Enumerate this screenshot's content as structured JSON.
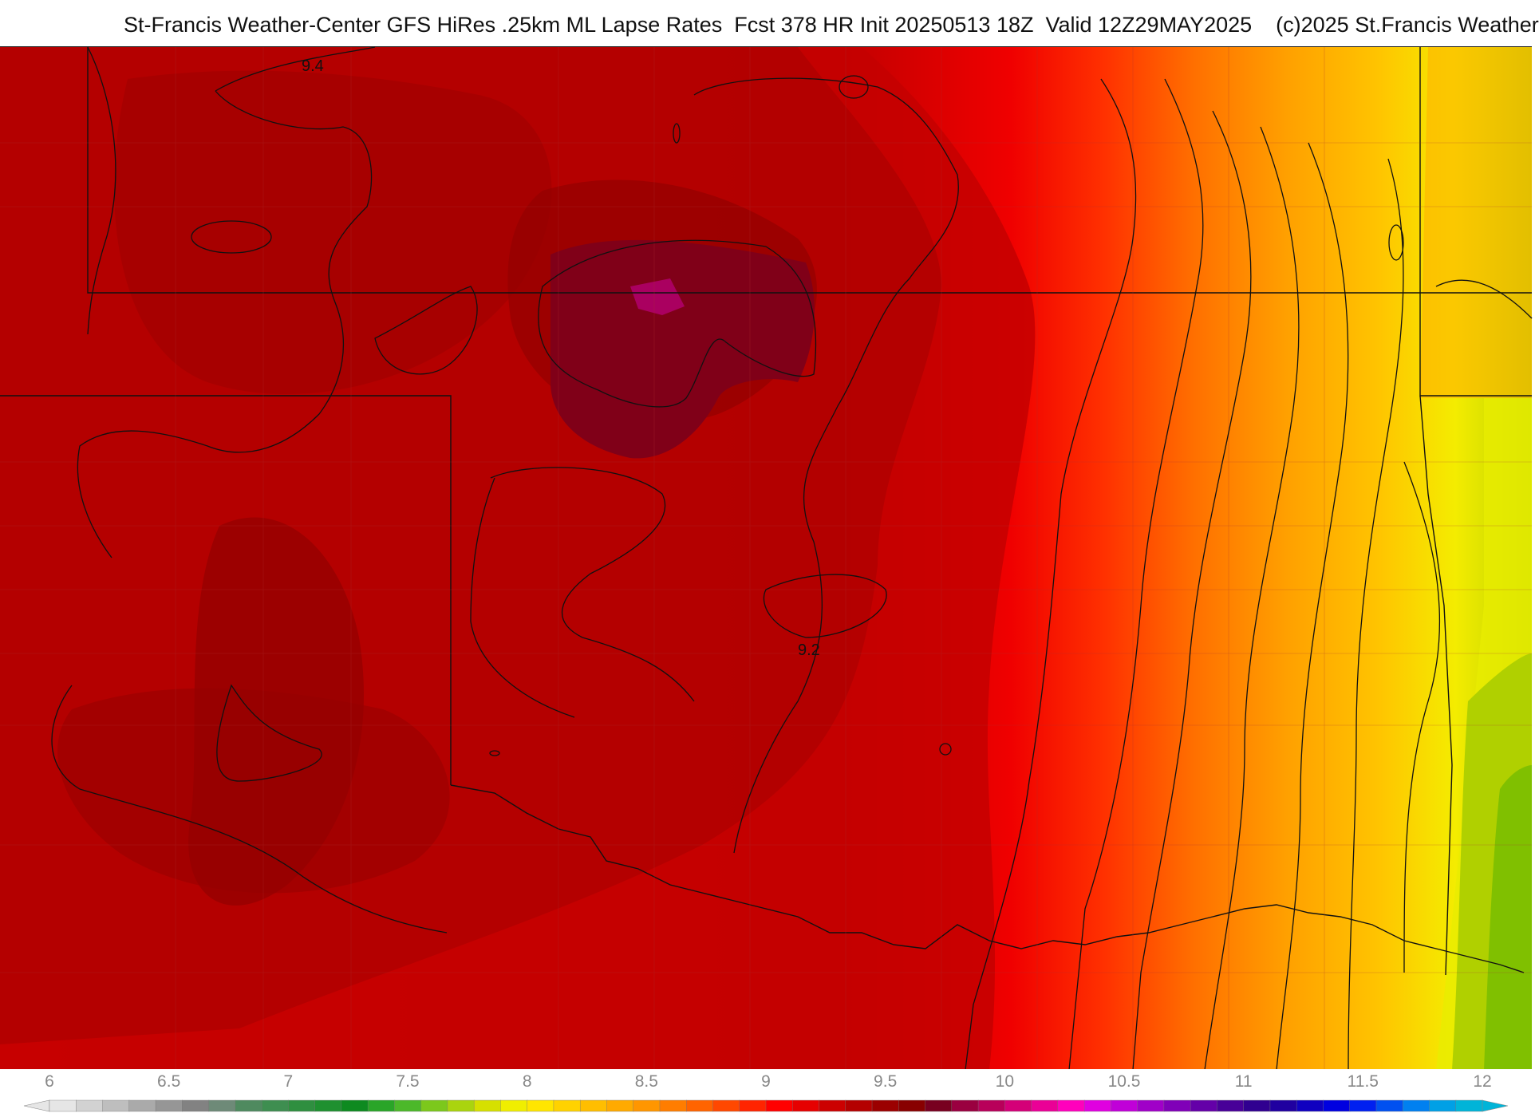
{
  "header": {
    "title": "St-Francis Weather-Center GFS HiRes .25km ML Lapse Rates  Fcst 378 HR Init 20250513 18Z  Valid 12Z29MAY2025    (c)2025 St.Francis Weather"
  },
  "map": {
    "contour_labels": [
      "9.4",
      "9.2"
    ]
  },
  "colorbar": {
    "tick_labels": [
      "6",
      "6.5",
      "7",
      "7.5",
      "8",
      "8.5",
      "9",
      "9.5",
      "10",
      "10.5",
      "11",
      "11.5",
      "12"
    ],
    "colors": [
      "#e6e6e6",
      "#d2d2d2",
      "#bebebe",
      "#aaaaaa",
      "#969696",
      "#828282",
      "#6e8a78",
      "#4f8a5f",
      "#3e8e50",
      "#2f8f40",
      "#1f9030",
      "#0e8a20",
      "#2aa528",
      "#4cb82a",
      "#7cc81c",
      "#aad40e",
      "#d6e000",
      "#f0ee00",
      "#ffe600",
      "#ffd200",
      "#ffbe00",
      "#ffaa00",
      "#ff9600",
      "#ff7d00",
      "#ff6400",
      "#ff4800",
      "#ff2400",
      "#ff0000",
      "#e60000",
      "#cc0000",
      "#b40000",
      "#9b0000",
      "#880000",
      "#780020",
      "#9a0040",
      "#b8005a",
      "#d40078",
      "#ea0096",
      "#ff00bc",
      "#e000e0",
      "#c000d8",
      "#a000c8",
      "#8000b8",
      "#6400a8",
      "#480098",
      "#300090",
      "#2000a0",
      "#1000c0",
      "#0000e0",
      "#0020f0",
      "#0050f0",
      "#0080f0",
      "#00a0e6",
      "#00b4d8"
    ]
  }
}
